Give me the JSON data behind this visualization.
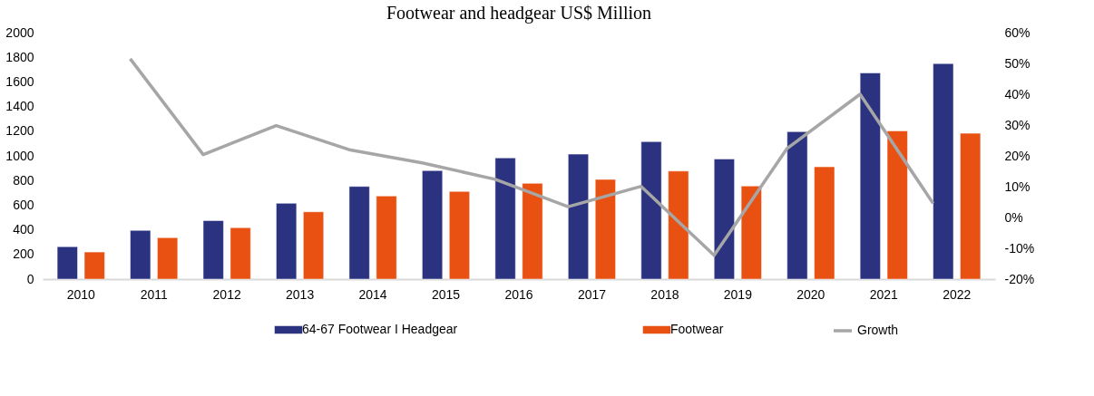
{
  "chart_data": {
    "type": "bar",
    "title": "Footwear and headgear US$ Million",
    "categories": [
      "2010",
      "2011",
      "2012",
      "2013",
      "2014",
      "2015",
      "2016",
      "2017",
      "2018",
      "2019",
      "2020",
      "2021",
      "2022"
    ],
    "series": [
      {
        "name": "64-67 Footwear I Headgear",
        "color": "#2b3381",
        "values": [
          263,
          395,
          475,
          615,
          752,
          880,
          983,
          1014,
          1115,
          975,
          1196,
          1673,
          1749
        ]
      },
      {
        "name": "Footwear",
        "color": "#e85112",
        "values": [
          220,
          336,
          417,
          546,
          674,
          711,
          777,
          809,
          877,
          755,
          911,
          1203,
          1183
        ]
      },
      {
        "name": "Growth",
        "type": "line",
        "axis": "y2",
        "color": "#a6a6a6",
        "values": [
          null,
          51.5,
          20.4,
          29.8,
          22.0,
          17.7,
          12.4,
          3.5,
          10.1,
          -12.3,
          22.4,
          40.0,
          4.6
        ]
      }
    ],
    "ylim": [
      0,
      2000
    ],
    "yticks": [
      0,
      200,
      400,
      600,
      800,
      1000,
      1200,
      1400,
      1600,
      1800,
      2000
    ],
    "y2lim": [
      -20,
      60
    ],
    "y2ticks": [
      {
        "value": -20,
        "label": "-20%"
      },
      {
        "value": -10,
        "label": "-10%"
      },
      {
        "value": 0,
        "label": "0%"
      },
      {
        "value": 10,
        "label": "10%"
      },
      {
        "value": 20,
        "label": "20%"
      },
      {
        "value": 30,
        "label": "30%"
      },
      {
        "value": 40,
        "label": "40%"
      },
      {
        "value": 50,
        "label": "50%"
      },
      {
        "value": 60,
        "label": "60%"
      }
    ],
    "grid": false,
    "legend": "bottom",
    "marker": "none",
    "line_style": "solid"
  }
}
